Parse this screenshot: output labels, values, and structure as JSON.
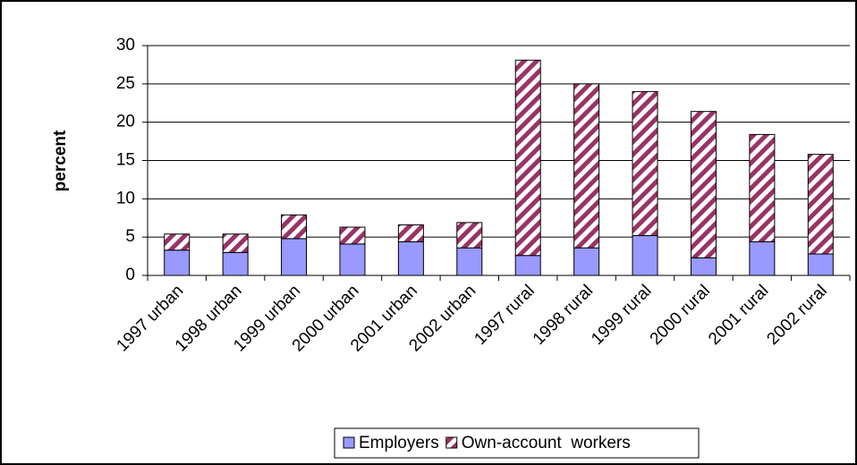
{
  "chart_data": {
    "type": "stacked-bar",
    "y_label": "percent",
    "categories": [
      "1997 urban",
      "1998 urban",
      "1999 urban",
      "2000 urban",
      "2001 urban",
      "2002 urban",
      "1997 rural",
      "1998 rural",
      "1999 rural",
      "2000 rural",
      "2001 rural",
      "2002 rural"
    ],
    "series": [
      {
        "name": "Employers",
        "color": "#9999ff",
        "values": [
          3.3,
          3.0,
          4.8,
          4.1,
          4.4,
          3.6,
          2.6,
          3.6,
          5.2,
          2.3,
          4.4,
          2.8
        ]
      },
      {
        "name": "Own-account  workers",
        "color": "#993366",
        "values": [
          2.1,
          2.4,
          3.1,
          2.2,
          2.2,
          3.3,
          25.5,
          21.4,
          18.8,
          19.1,
          14.0,
          13.0
        ]
      }
    ],
    "ylim": [
      0,
      30
    ],
    "yticks": [
      0,
      5,
      10,
      15,
      20,
      25,
      30
    ],
    "grid": true,
    "legend": "bottom"
  }
}
